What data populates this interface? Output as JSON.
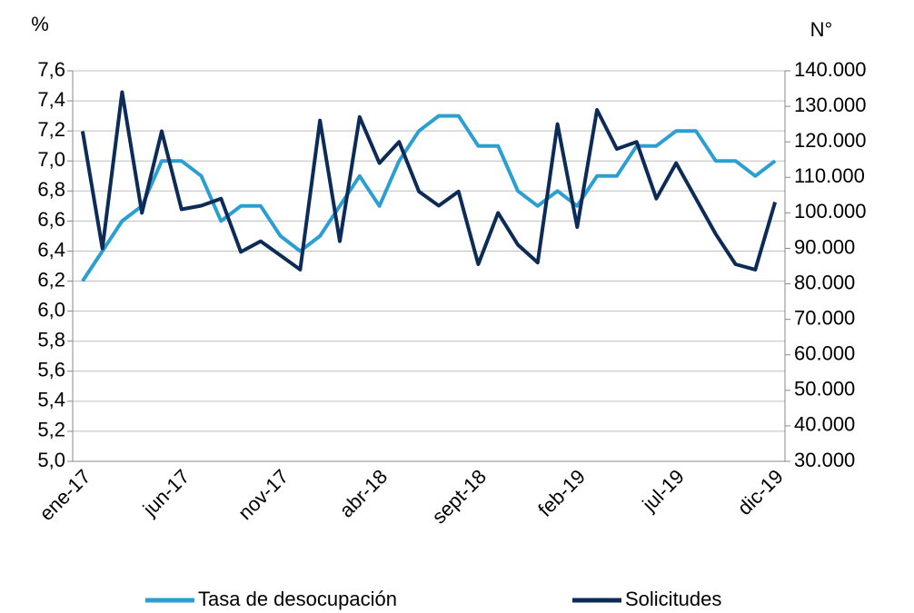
{
  "chart_data": {
    "type": "line",
    "y_label": "%",
    "y2_label": "N°",
    "categories": [
      "ene-17",
      null,
      null,
      null,
      null,
      "jun-17",
      null,
      null,
      null,
      null,
      "nov-17",
      null,
      null,
      null,
      null,
      "abr-18",
      null,
      null,
      null,
      null,
      "sept-18",
      null,
      null,
      null,
      null,
      "feb-19",
      null,
      null,
      null,
      null,
      "jul-19",
      null,
      null,
      null,
      null,
      "dic-19"
    ],
    "series": [
      {
        "name": "Tasa de desocupación",
        "color": "#2b9fd1",
        "axis": "y",
        "values": [
          6.2,
          6.4,
          6.6,
          6.7,
          7.0,
          7.0,
          6.9,
          6.6,
          6.7,
          6.7,
          6.5,
          6.4,
          6.5,
          6.7,
          6.9,
          6.7,
          7.0,
          7.2,
          7.3,
          7.3,
          7.1,
          7.1,
          6.8,
          6.7,
          6.8,
          6.7,
          6.9,
          6.9,
          7.1,
          7.1,
          7.2,
          7.2,
          7.0,
          7.0,
          6.9,
          7.0
        ]
      },
      {
        "name": "Solicitudes",
        "color": "#0c2b57",
        "axis": "y2",
        "values": [
          123000,
          90000,
          134000,
          100000,
          123000,
          101000,
          102000,
          104000,
          89000,
          92000,
          88000,
          84000,
          126000,
          92000,
          127000,
          114000,
          120000,
          106000,
          102000,
          106000,
          85500,
          100000,
          91000,
          86000,
          125000,
          96000,
          129000,
          118000,
          120000,
          104000,
          114000,
          104000,
          94000,
          85500,
          84000,
          103000
        ]
      }
    ],
    "ylim": [
      5.0,
      7.6
    ],
    "yticks": [
      {
        "value": 5.0,
        "label": "5,0"
      },
      {
        "value": 5.2,
        "label": "5,2"
      },
      {
        "value": 5.4,
        "label": "5,4"
      },
      {
        "value": 5.6,
        "label": "5,6"
      },
      {
        "value": 5.8,
        "label": "5,8"
      },
      {
        "value": 6.0,
        "label": "6,0"
      },
      {
        "value": 6.2,
        "label": "6,2"
      },
      {
        "value": 6.4,
        "label": "6,4"
      },
      {
        "value": 6.6,
        "label": "6,6"
      },
      {
        "value": 6.8,
        "label": "6,8"
      },
      {
        "value": 7.0,
        "label": "7,0"
      },
      {
        "value": 7.2,
        "label": "7,2"
      },
      {
        "value": 7.4,
        "label": "7,4"
      },
      {
        "value": 7.6,
        "label": "7,6"
      }
    ],
    "y2lim": [
      30000,
      140000
    ],
    "y2ticks": [
      {
        "value": 30000,
        "label": "30.000"
      },
      {
        "value": 40000,
        "label": "40.000"
      },
      {
        "value": 50000,
        "label": "50.000"
      },
      {
        "value": 60000,
        "label": "60.000"
      },
      {
        "value": 70000,
        "label": "70.000"
      },
      {
        "value": 80000,
        "label": "80.000"
      },
      {
        "value": 90000,
        "label": "90.000"
      },
      {
        "value": 100000,
        "label": "100.000"
      },
      {
        "value": 110000,
        "label": "110.000"
      },
      {
        "value": 120000,
        "label": "120.000"
      },
      {
        "value": 130000,
        "label": "130.000"
      },
      {
        "value": 140000,
        "label": "140.000"
      }
    ],
    "grid": true,
    "legend": "bottom"
  }
}
